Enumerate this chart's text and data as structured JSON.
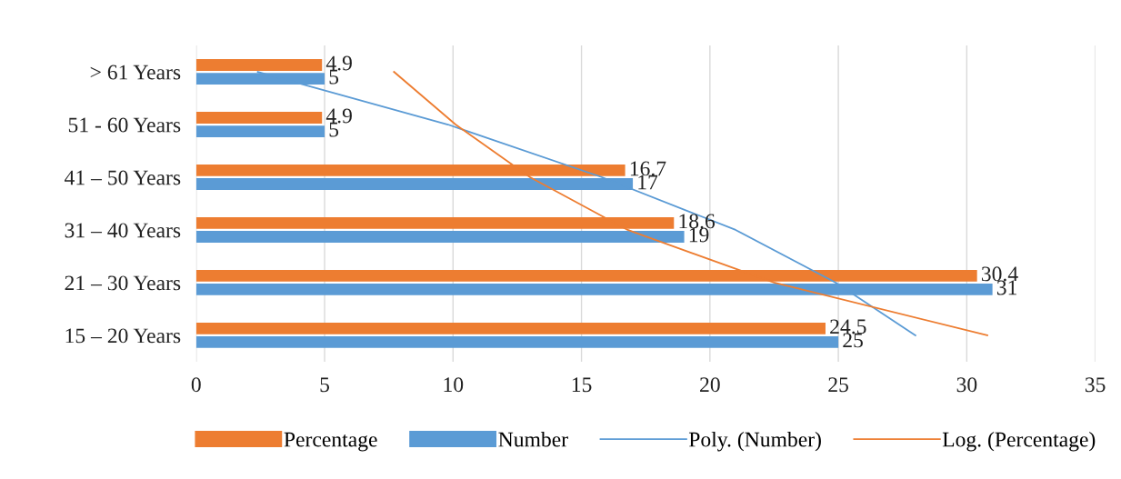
{
  "chart_data": {
    "type": "bar",
    "orientation": "horizontal",
    "categories": [
      "> 61 Years",
      "51 - 60 Years",
      "41 – 50 Years",
      "31 – 40 Years",
      "21 – 30 Years",
      "15 – 20 Years"
    ],
    "series": [
      {
        "name": "Percentage",
        "color": "#ed7d31",
        "values": [
          4.9,
          4.9,
          16.7,
          18.6,
          30.4,
          24.5
        ],
        "value_labels": [
          "4.9",
          "4.9",
          "16.7",
          "18.6",
          "30.4",
          "24.5"
        ]
      },
      {
        "name": "Number",
        "color": "#5b9bd5",
        "values": [
          5,
          5,
          17,
          19,
          31,
          25
        ],
        "value_labels": [
          "5",
          "5",
          "17",
          "19",
          "31",
          "25"
        ]
      },
      {
        "name": "Poly. (Number)",
        "type": "line",
        "color": "#5b9bd5",
        "values": [
          2.4,
          9.8,
          15.8,
          21.0,
          24.9,
          28.0
        ]
      },
      {
        "name": "Log. (Percentage)",
        "type": "line",
        "color": "#ed7d31",
        "values": [
          7.7,
          10.1,
          13.0,
          16.8,
          22.5,
          30.8
        ]
      }
    ],
    "xlim": [
      0,
      35
    ],
    "xticks": [
      0,
      5,
      10,
      15,
      20,
      25,
      30,
      35
    ],
    "grid": "x",
    "legend": "bottom",
    "marker": "none",
    "line_style": "solid"
  }
}
